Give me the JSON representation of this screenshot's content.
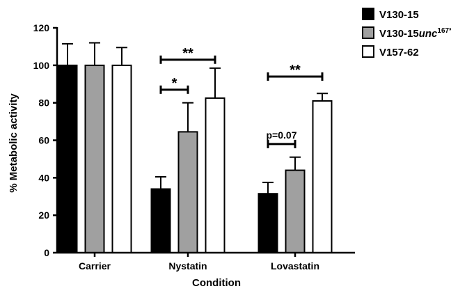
{
  "chart_data": {
    "type": "bar",
    "title": "",
    "xlabel": "Condition",
    "ylabel": "% Metabolic activity",
    "ylim": [
      0,
      120
    ],
    "yticks": [
      0,
      20,
      40,
      60,
      80,
      100,
      120
    ],
    "categories": [
      "Carrier",
      "Nystatin",
      "Lovastatin"
    ],
    "series": [
      {
        "name": "V130-15",
        "color": "#000000",
        "values": [
          100,
          34,
          31.5
        ],
        "errors": [
          11.5,
          6.5,
          6
        ]
      },
      {
        "name": "V130-15",
        "name_italic": "unc",
        "name_sup": "167*",
        "color": "#a0a0a0",
        "values": [
          100,
          64.5,
          44
        ],
        "errors": [
          12,
          15.5,
          7
        ]
      },
      {
        "name": "V157-62",
        "color": "#ffffff",
        "values": [
          100,
          82.5,
          81
        ],
        "errors": [
          9.5,
          16,
          4
        ]
      }
    ],
    "legend_position": "top-right",
    "significance": [
      {
        "category": "Nystatin",
        "from_series": 0,
        "to_series": 1,
        "y": 87,
        "label": "*"
      },
      {
        "category": "Nystatin",
        "from_series": 0,
        "to_series": 2,
        "y": 103,
        "label": "**"
      },
      {
        "category": "Lovastatin",
        "from_series": 0,
        "to_series": 1,
        "y": 58,
        "label": "p=0.07"
      },
      {
        "category": "Lovastatin",
        "from_series": 0,
        "to_series": 2,
        "y": 94,
        "label": "**"
      }
    ]
  }
}
